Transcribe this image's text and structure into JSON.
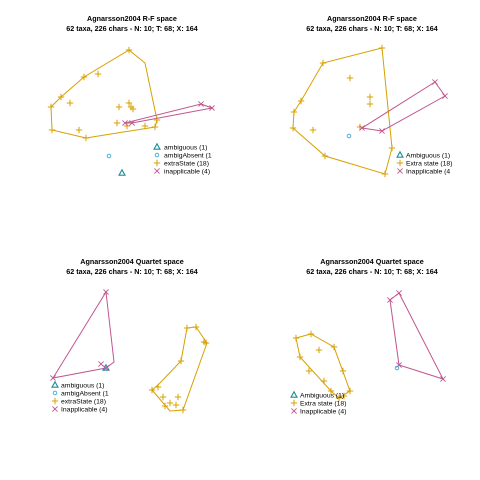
{
  "colors": {
    "ambiguous": "#1a8f98",
    "ambigAbsent": "#3fa6e0",
    "extraState": "#d7a000",
    "inapplicable": "#c0558e"
  },
  "chart_data": [
    {
      "type": "scatter",
      "title": "Agnarsson2004 R-F space",
      "subtitle": "62 taxa, 226 chars - N: 10; T: 68; X: 164",
      "legend_position": "right",
      "series": [
        {
          "name": "ambiguous (1)",
          "key": "ambiguous",
          "marker": "triangle",
          "points": [
            [
              122,
              173
            ]
          ]
        },
        {
          "name": "ambigAbsent (1",
          "key": "ambigAbsent",
          "marker": "circle",
          "points": [
            [
              109,
              156
            ]
          ]
        },
        {
          "name": "extraState (18)",
          "key": "extraState",
          "marker": "plus",
          "points": [
            [
              84,
              77
            ],
            [
              98,
              74
            ],
            [
              129,
              50
            ],
            [
              70,
              103
            ],
            [
              61,
              97
            ],
            [
              51,
              107
            ],
            [
              52,
              130
            ],
            [
              79,
              130
            ],
            [
              86,
              138
            ],
            [
              119,
              107
            ],
            [
              129,
              103
            ],
            [
              133,
              109
            ],
            [
              131,
              107
            ],
            [
              127,
              126
            ],
            [
              145,
              126
            ],
            [
              155,
              127
            ],
            [
              157,
              120
            ],
            [
              117,
              123
            ]
          ],
          "hull": [
            [
              129,
              50
            ],
            [
              84,
              77
            ],
            [
              61,
              97
            ],
            [
              51,
              107
            ],
            [
              52,
              130
            ],
            [
              86,
              138
            ],
            [
              155,
              127
            ],
            [
              157,
              120
            ],
            [
              145,
              63
            ]
          ]
        },
        {
          "name": "inapplicable (4)",
          "key": "inapplicable",
          "marker": "cross",
          "points": [
            [
              201,
              104
            ],
            [
              212,
              108
            ],
            [
              125,
              123
            ],
            [
              132,
              123
            ]
          ],
          "hull": [
            [
              201,
              104
            ],
            [
              212,
              108
            ],
            [
              132,
              123
            ],
            [
              125,
              123
            ]
          ]
        }
      ]
    },
    {
      "type": "scatter",
      "title": "Agnarsson2004 R-F space",
      "subtitle": "62 taxa, 226 chars - N: 10; T: 68; X: 164",
      "legend_position": "right",
      "series": [
        {
          "name": "Ambiguous (1)",
          "key": "ambiguous",
          "marker": "triangle",
          "points": []
        },
        {
          "name": "Extra state (18)",
          "key": "extraState",
          "marker": "plus",
          "points": [
            [
              323,
              63
            ],
            [
              382,
              48
            ],
            [
              350,
              78
            ],
            [
              301,
              101
            ],
            [
              294,
              112
            ],
            [
              293,
              128
            ],
            [
              313,
              130
            ],
            [
              325,
              156
            ],
            [
              370,
              104
            ],
            [
              370,
              97
            ],
            [
              360,
              127
            ],
            [
              385,
              174
            ],
            [
              392,
              148
            ]
          ],
          "hull": [
            [
              382,
              48
            ],
            [
              323,
              63
            ],
            [
              301,
              101
            ],
            [
              294,
              112
            ],
            [
              293,
              128
            ],
            [
              325,
              156
            ],
            [
              385,
              174
            ],
            [
              392,
              148
            ]
          ]
        },
        {
          "name": "Inapplicable (4",
          "key": "inapplicable",
          "marker": "cross",
          "points": [
            [
              445,
              96
            ],
            [
              435,
              82
            ],
            [
              362,
              128
            ],
            [
              382,
              131
            ]
          ],
          "hull": [
            [
              435,
              82
            ],
            [
              445,
              96
            ],
            [
              382,
              131
            ],
            [
              362,
              128
            ]
          ]
        },
        {
          "name": "",
          "key": "ambigAbsent",
          "marker": "circle",
          "points": [
            [
              349,
              136
            ]
          ]
        }
      ]
    },
    {
      "type": "scatter",
      "title": "Agnarsson2004 Quartet space",
      "subtitle": "62 taxa, 226 chars - N: 10; T: 68; X: 164",
      "legend_position": "bottom-left",
      "series": [
        {
          "name": "ambiguous (1)",
          "key": "ambiguous",
          "marker": "triangle",
          "points": [
            [
              106,
              368
            ]
          ]
        },
        {
          "name": "ambigAbsent (1",
          "key": "ambigAbsent",
          "marker": "circle",
          "points": [
            [
              106,
              368
            ]
          ]
        },
        {
          "name": "extraState (18)",
          "key": "extraState",
          "marker": "plus",
          "points": [
            [
              187,
              328
            ],
            [
              196,
              327
            ],
            [
              206,
              343
            ],
            [
              204,
              342
            ],
            [
              181,
              361
            ],
            [
              158,
              387
            ],
            [
              152,
              390
            ],
            [
              163,
              397
            ],
            [
              170,
              403
            ],
            [
              176,
              405
            ],
            [
              183,
              410
            ],
            [
              165,
              406
            ],
            [
              178,
              397
            ]
          ],
          "hull": [
            [
              187,
              328
            ],
            [
              196,
              327
            ],
            [
              207,
              343
            ],
            [
              183,
              410
            ],
            [
              170,
              411
            ],
            [
              152,
              390
            ],
            [
              158,
              385
            ],
            [
              181,
              361
            ]
          ]
        },
        {
          "name": "Inapplicable (4)",
          "key": "inapplicable",
          "marker": "cross",
          "points": [
            [
              106,
              292
            ],
            [
              101,
              364
            ],
            [
              106,
              368
            ],
            [
              53,
              378
            ]
          ],
          "hull": [
            [
              106,
              292
            ],
            [
              114,
              362
            ],
            [
              106,
              368
            ],
            [
              53,
              378
            ]
          ]
        }
      ]
    },
    {
      "type": "scatter",
      "title": "Agnarsson2004 Quartet space",
      "subtitle": "62 taxa, 226 chars - N: 10; T: 68; X: 164",
      "legend_position": "bottom-left",
      "series": [
        {
          "name": "Ambiguous (1)",
          "key": "ambiguous",
          "marker": "triangle",
          "points": []
        },
        {
          "name": "Extra state (18)",
          "key": "extraState",
          "marker": "plus",
          "points": [
            [
              311,
              334
            ],
            [
              296,
              338
            ],
            [
              300,
              357
            ],
            [
              309,
              371
            ],
            [
              324,
              381
            ],
            [
              331,
              391
            ],
            [
              339,
              398
            ],
            [
              344,
              396
            ],
            [
              350,
              391
            ],
            [
              343,
              371
            ],
            [
              334,
              347
            ],
            [
              319,
              350
            ]
          ],
          "hull": [
            [
              311,
              334
            ],
            [
              296,
              338
            ],
            [
              300,
              357
            ],
            [
              331,
              391
            ],
            [
              339,
              398
            ],
            [
              350,
              391
            ],
            [
              334,
              347
            ]
          ]
        },
        {
          "name": "Inapplicable (4)",
          "key": "inapplicable",
          "marker": "cross",
          "points": [
            [
              399,
              293
            ],
            [
              390,
              300
            ],
            [
              399,
              365
            ],
            [
              443,
              379
            ]
          ],
          "hull": [
            [
              399,
              293
            ],
            [
              443,
              379
            ],
            [
              399,
              365
            ],
            [
              390,
              300
            ]
          ]
        },
        {
          "name": "",
          "key": "ambigAbsent",
          "marker": "circle",
          "points": [
            [
              397,
              368
            ]
          ]
        }
      ]
    }
  ]
}
